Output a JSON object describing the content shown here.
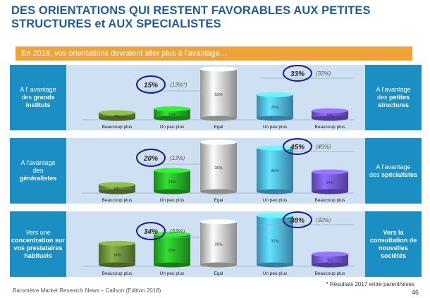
{
  "title": "DES ORIENTATIONS QUI RESTENT FAVORABLES AUX PETITES STRUCTURES et AUX SPECIALISTES",
  "banner": "En 2018, vos orientations devraient aller plus à l’avantage...",
  "colors": {
    "title": "#1f5c99",
    "banner": "#f0a23a",
    "panel": "#cfe0f2",
    "side": "#1b8ec3",
    "bars": [
      "#6b8e3a",
      "#27b327",
      "#c9c9c9",
      "#4fb6e6",
      "#7257d6"
    ],
    "circle": "#1c1c7a"
  },
  "panels": [
    {
      "left_label": [
        "A l’ avantage",
        "des ",
        "grands",
        " instituts"
      ],
      "right_label": [
        "A l’avantage",
        "des ",
        "petites",
        " structures"
      ]
    },
    {
      "left_label": [
        "A l’avantage",
        "des",
        "",
        "généralistes"
      ],
      "right_label": [
        "A l’avantage",
        "des ",
        "spécialistes",
        ""
      ]
    },
    {
      "left_label": [
        "Vers une",
        "",
        "concentration",
        " sur vos prestataires habituels"
      ],
      "right_label": [
        "Vers la",
        "",
        "consultation de nouvelles sociétés",
        ""
      ]
    }
  ],
  "chart_data": [
    {
      "type": "bar",
      "categories": [
        "Beaucoup plus",
        "Un peu plus",
        "Egal",
        "Un peu plus",
        "Beaucoup plus"
      ],
      "values": [
        5,
        10,
        52,
        25,
        8
      ],
      "value_labels": [
        "5%",
        "10%",
        "52%",
        "25%",
        "8%"
      ],
      "ylim": [
        0,
        52
      ],
      "left_total": "15%",
      "left_prev": "(13%*)",
      "right_total": "33%",
      "right_prev": "(32%)"
    },
    {
      "type": "bar",
      "categories": [
        "Beaucoup plus",
        "Un peu plus",
        "Egal",
        "Un peu plus",
        "Beaucoup plus"
      ],
      "values": [
        5,
        15,
        35,
        31,
        14
      ],
      "value_labels": [
        "5%",
        "15%",
        "35%",
        "31%",
        "14%"
      ],
      "ylim": [
        0,
        35
      ],
      "left_total": "20%",
      "left_prev": "(13%)",
      "right_total": "45%",
      "right_prev": "(45%)"
    },
    {
      "type": "bar",
      "categories": [
        "Beaucoup plus",
        "Un peu plus",
        "Egal",
        "Un peu plus",
        "Beaucoup plus"
      ],
      "values": [
        14,
        20,
        28,
        32,
        7
      ],
      "value_labels": [
        "14%",
        "20%",
        "28%",
        "32%",
        "7%"
      ],
      "ylim": [
        0,
        32
      ],
      "left_total": "34%",
      "left_prev": "(33%)",
      "right_total": "38%",
      "right_prev": "(32%)"
    }
  ],
  "note": "* Résultats 2017 entre parenthèses",
  "footer": "Baromètre Market Research News – Callson (Edition 2018)",
  "page_number": "46"
}
